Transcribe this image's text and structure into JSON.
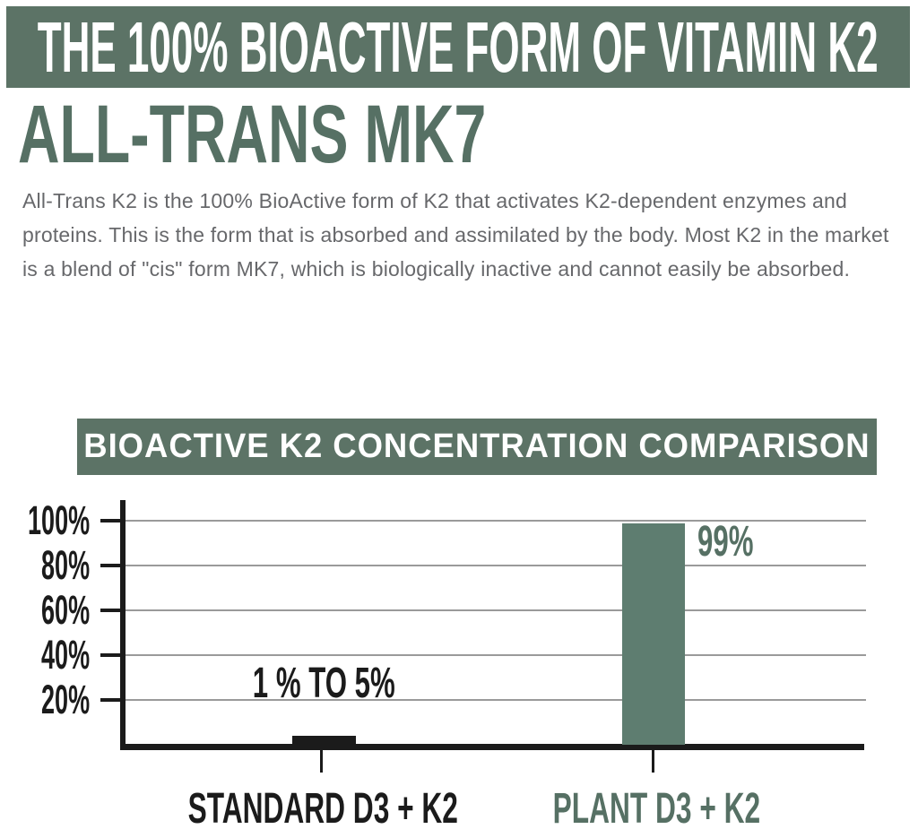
{
  "colors": {
    "banner_green": "#5c7366",
    "bar_green": "#5e7d70",
    "text_green": "#567064",
    "ink": "#1b1b1b",
    "paragraph_gray": "#67686b",
    "gridline_gray": "#9a9a9a"
  },
  "top_banner": {
    "title": "THE 100% BIOACTIVE FORM OF VITAMIN K2"
  },
  "heading": {
    "title": "ALL-TRANS MK7"
  },
  "intro": {
    "text": "All-Trans K2 is the 100% BioActive form of K2 that activates K2-dependent enzymes and proteins. This is the form that is absorbed and assimilated by the body. Most K2 in the market is a blend of \"cis\" form MK7, which is biologically inactive and cannot easily be absorbed."
  },
  "chart_data": {
    "type": "bar",
    "title": "BIOACTIVE K2 CONCENTRATION COMPARISON",
    "categories": [
      "STANDARD D3 + K2",
      "PLANT D3 + K2"
    ],
    "values": [
      4,
      99
    ],
    "value_labels": [
      "1 % TO 5%",
      "99%"
    ],
    "y_ticks": [
      {
        "label": "100%",
        "value": 100
      },
      {
        "label": "80%",
        "value": 80
      },
      {
        "label": "60%",
        "value": 60
      },
      {
        "label": "40%",
        "value": 40
      },
      {
        "label": "20%",
        "value": 20
      }
    ],
    "ylim": [
      0,
      108
    ],
    "xlabel": "",
    "ylabel": "",
    "grid": true,
    "legend": false,
    "bar_colors": [
      "#1b1b1b",
      "#5e7d70"
    ],
    "value_label_colors": [
      "#1b1b1b",
      "#567064"
    ],
    "category_colors": [
      "#1b1b1b",
      "#567064"
    ]
  }
}
